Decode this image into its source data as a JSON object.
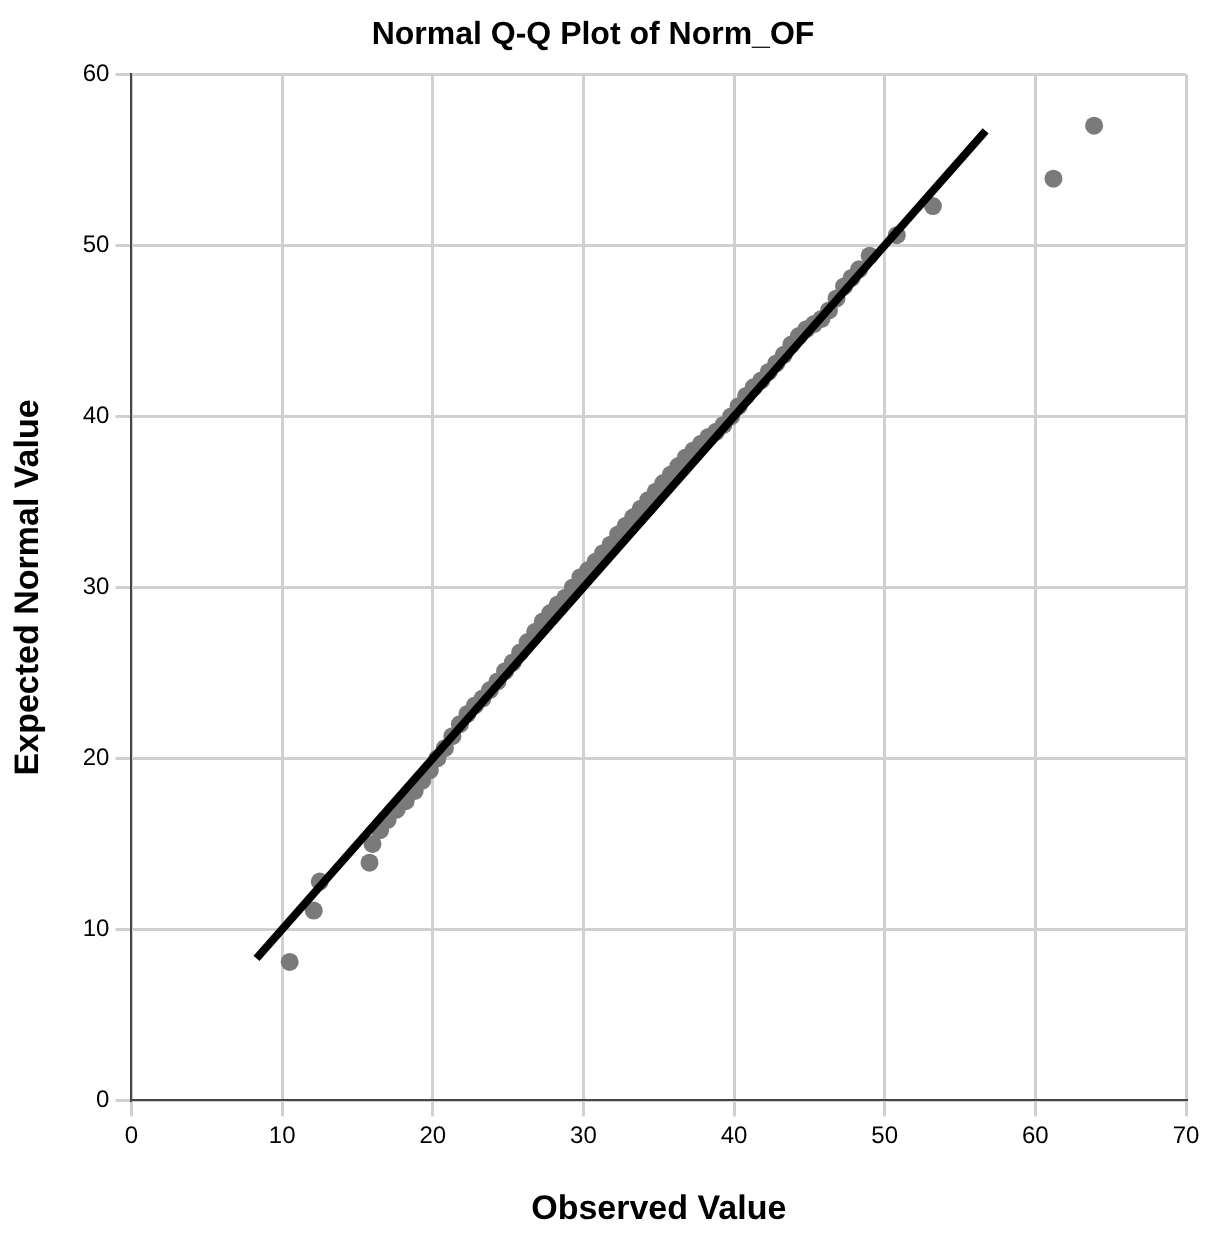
{
  "chart_data": {
    "type": "scatter",
    "title": "Normal Q-Q Plot of Norm_OF",
    "xlabel": "Observed Value",
    "ylabel": "Expected Normal Value",
    "xlim": [
      0,
      70
    ],
    "ylim": [
      0,
      60
    ],
    "xticks": [
      0,
      10,
      20,
      30,
      40,
      50,
      60,
      70
    ],
    "yticks": [
      0,
      10,
      20,
      30,
      40,
      50,
      60
    ],
    "grid": true,
    "legend": false,
    "marker": "circle",
    "series": [
      {
        "color": "#7a7a7a",
        "x": [
          10.5,
          12.1,
          12.5,
          15.8,
          16,
          16.5,
          17,
          17.6,
          18.2,
          18.8,
          19.3,
          19.8,
          20.3,
          20.8,
          21.3,
          21.8,
          22.3,
          22.8,
          23.3,
          23.8,
          24.3,
          24.8,
          25.3,
          25.8,
          26.3,
          26.8,
          27.3,
          27.8,
          28.3,
          28.8,
          29.3,
          29.8,
          30.3,
          30.8,
          31.3,
          31.8,
          32.3,
          32.8,
          33.3,
          33.8,
          34.3,
          34.8,
          35.3,
          35.8,
          36.3,
          36.8,
          37.3,
          37.8,
          38.3,
          38.8,
          39.3,
          39.8,
          40.3,
          40.8,
          41.3,
          41.8,
          42.3,
          42.8,
          43.3,
          43.8,
          44.3,
          44.8,
          45.3,
          45.8,
          46.3,
          46.8,
          47.3,
          47.8,
          48.3,
          49,
          50.8,
          53.2,
          61.2,
          63.9
        ],
        "values": [
          8.1,
          11.1,
          12.8,
          13.9,
          15,
          15.8,
          16.4,
          17,
          17.5,
          18.1,
          18.7,
          19.3,
          20,
          20.6,
          21.3,
          22,
          22.6,
          23.1,
          23.5,
          24,
          24.5,
          25.1,
          25.6,
          26.2,
          26.8,
          27.4,
          28,
          28.5,
          29,
          29.4,
          30,
          30.6,
          31,
          31.5,
          32,
          32.5,
          33.1,
          33.6,
          34.1,
          34.6,
          35.1,
          35.6,
          36.1,
          36.6,
          37.1,
          37.6,
          38,
          38.4,
          38.8,
          39.1,
          39.5,
          40,
          40.6,
          41.2,
          41.7,
          42.1,
          42.6,
          43.1,
          43.6,
          44.2,
          44.7,
          45.1,
          45.4,
          45.7,
          46.2,
          46.9,
          47.6,
          48.1,
          48.6,
          49.4,
          50.6,
          52.3,
          53.9,
          57
        ]
      },
      {
        "type": "line",
        "color": "#000000",
        "marker": "none",
        "x": [
          8.3,
          56.7
        ],
        "values": [
          8.3,
          56.7
        ]
      }
    ]
  }
}
